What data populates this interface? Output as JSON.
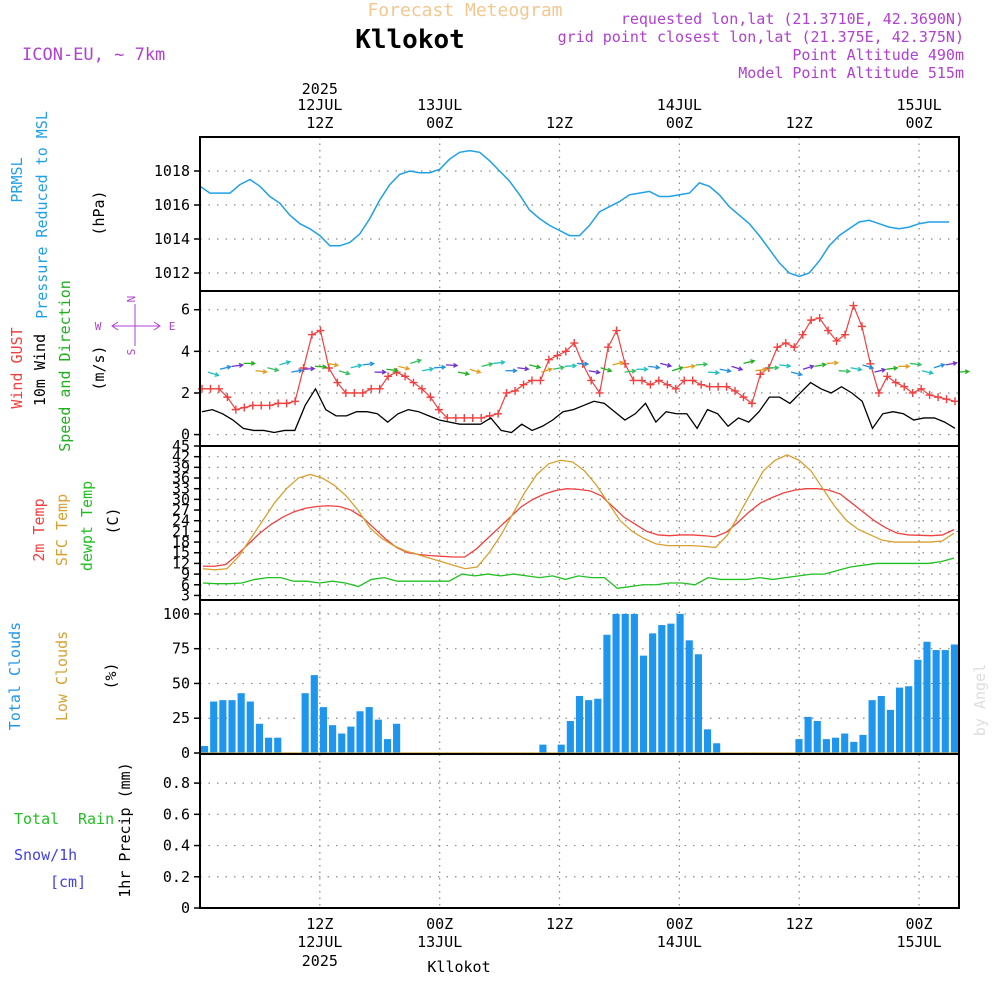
{
  "header": {
    "title": "Forecast Meteogram",
    "location": "Kllokot",
    "model": "ICON-EU, ~ 7km",
    "requested": "requested lon,lat (21.3710E, 42.3690N)",
    "grid_point": "grid point closest lon,lat (21.375E, 42.375N)",
    "point_altitude": "Point Altitude 490m",
    "model_altitude": "Model Point Altitude 515m",
    "footer_location": "Kllokot",
    "watermark": "by Angel"
  },
  "time_axis": {
    "top_labels": [
      {
        "year": "2025",
        "date": "12JUL",
        "hour": "12Z",
        "t": 12
      },
      {
        "year": "",
        "date": "13JUL",
        "hour": "00Z",
        "t": 24
      },
      {
        "year": "",
        "date": "",
        "hour": "12Z",
        "t": 36
      },
      {
        "year": "",
        "date": "14JUL",
        "hour": "00Z",
        "t": 48
      },
      {
        "year": "",
        "date": "",
        "hour": "12Z",
        "t": 60
      },
      {
        "year": "",
        "date": "15JUL",
        "hour": "00Z",
        "t": 72
      }
    ],
    "bottom_labels": [
      {
        "hour": "12Z",
        "date": "12JUL",
        "year": "2025",
        "t": 12
      },
      {
        "hour": "00Z",
        "date": "13JUL",
        "year": "",
        "t": 24
      },
      {
        "hour": "12Z",
        "date": "",
        "year": "",
        "t": 36
      },
      {
        "hour": "00Z",
        "date": "14JUL",
        "year": "",
        "t": 48
      },
      {
        "hour": "12Z",
        "date": "",
        "year": "",
        "t": 60
      },
      {
        "hour": "00Z",
        "date": "15JUL",
        "year": "",
        "t": 72
      }
    ]
  },
  "colors": {
    "pressure": "#1fa0e8",
    "gust": "#f04040",
    "wind": "#000000",
    "wind_arrows": "#20b020",
    "temp2m": "#f04040",
    "sfc": "#d8a030",
    "dewpt": "#20c020",
    "clouds": "#1f96ee",
    "low_clouds": "#d8a030",
    "rain": "#20c020",
    "snow": "#4040e8",
    "compass": "#b040d0",
    "title": "#f0c890",
    "info": "#b040d0"
  },
  "panels": {
    "pressure": {
      "labels": [
        "PRMSL",
        "Pressure Reduced to MSL"
      ],
      "unit": "(hPa)",
      "ticks": [
        "1012",
        "1014",
        "1016",
        "1018"
      ]
    },
    "wind": {
      "labels": [
        "Wind GUST",
        "10m Wind",
        "Speed and Direction"
      ],
      "unit": "(m/s)",
      "ticks": [
        "0",
        "2",
        "4",
        "6"
      ],
      "compass": {
        "n": "N",
        "s": "S",
        "w": "W",
        "e": "E"
      }
    },
    "temperature": {
      "labels": [
        "2m Temp",
        "SFC Temp",
        "dewpt Temp"
      ],
      "unit": "(C)",
      "ticks": [
        "3",
        "6",
        "9",
        "12",
        "15",
        "18",
        "21",
        "24",
        "27",
        "30",
        "33",
        "36",
        "39",
        "42",
        "45"
      ]
    },
    "clouds": {
      "labels": [
        "Total Clouds",
        "Low Clouds"
      ],
      "unit": "(%)",
      "ticks": [
        "0",
        "25",
        "50",
        "75",
        "100"
      ]
    },
    "precip": {
      "labels": [
        "Total",
        "Rain",
        "Snow/1h",
        "[cm]"
      ],
      "unit": "1hr Precip (mm)",
      "ticks": [
        "0",
        "0.2",
        "0.4",
        "0.6",
        "0.8"
      ]
    }
  },
  "chart_data": [
    {
      "type": "line",
      "panel": "pressure",
      "x": [
        0,
        1,
        2,
        3,
        4,
        5,
        6,
        7,
        8,
        9,
        10,
        11,
        12,
        13,
        14,
        15,
        16,
        17,
        18,
        19,
        20,
        21,
        22,
        23,
        24,
        25,
        26,
        27,
        28,
        29,
        30,
        31,
        32,
        33,
        34,
        35,
        36,
        37,
        38,
        39,
        40,
        41,
        42,
        43,
        44,
        45,
        46,
        47,
        48,
        49,
        50,
        51,
        52,
        53,
        54,
        55,
        56,
        57,
        58,
        59,
        60,
        61,
        62,
        63,
        64,
        65,
        66,
        67,
        68,
        69,
        70,
        71,
        72,
        73,
        74,
        75
      ],
      "values": [
        1017.1,
        1016.7,
        1016.7,
        1016.7,
        1017.2,
        1017.5,
        1017.1,
        1016.5,
        1016.1,
        1015.4,
        1014.9,
        1014.6,
        1014.2,
        1013.6,
        1013.6,
        1013.8,
        1014.3,
        1015.2,
        1016.3,
        1017.2,
        1017.8,
        1018.0,
        1017.9,
        1017.9,
        1018.1,
        1018.7,
        1019.1,
        1019.2,
        1019.1,
        1018.6,
        1018.0,
        1017.4,
        1016.6,
        1015.7,
        1015.2,
        1014.8,
        1014.5,
        1014.2,
        1014.2,
        1014.8,
        1015.6,
        1015.9,
        1016.2,
        1016.6,
        1016.7,
        1016.8,
        1016.5,
        1016.5,
        1016.6,
        1016.7,
        1017.3,
        1017.1,
        1016.6,
        1015.9,
        1015.4,
        1014.9,
        1014.2,
        1013.4,
        1012.6,
        1012.0,
        1011.8,
        1012.0,
        1012.7,
        1013.6,
        1014.2,
        1014.6,
        1015.0,
        1015.1,
        1014.9,
        1014.7,
        1014.6,
        1014.7,
        1014.9,
        1015.0,
        1015.0,
        1015.0
      ],
      "ylim": [
        1011,
        1020
      ]
    },
    {
      "type": "line",
      "panel": "wind",
      "series": [
        {
          "name": "Wind GUST",
          "values": [
            2.2,
            2.2,
            2.2,
            1.8,
            1.2,
            1.3,
            1.4,
            1.4,
            1.4,
            1.5,
            1.5,
            1.6,
            3.2,
            4.8,
            5.0,
            3.2,
            2.5,
            2.0,
            2.0,
            2.0,
            2.2,
            2.2,
            2.8,
            3.0,
            2.8,
            2.5,
            2.2,
            1.8,
            1.2,
            0.8,
            0.8,
            0.8,
            0.8,
            0.8,
            0.9,
            1.0,
            2.0,
            2.1,
            2.4,
            2.6,
            2.6,
            3.6,
            3.8,
            4.0,
            4.4,
            3.4,
            2.6,
            2.0,
            4.2,
            5.0,
            3.4,
            2.6,
            2.6,
            2.4,
            2.6,
            2.4,
            2.2,
            2.6,
            2.6,
            2.4,
            2.3,
            2.3,
            2.3,
            2.1,
            1.8,
            1.5,
            2.9,
            3.2,
            4.2,
            4.4,
            4.2,
            4.8,
            5.5,
            5.6,
            5.0,
            4.5,
            4.8,
            6.2,
            5.2,
            3.4,
            2.0,
            2.8,
            2.5,
            2.3,
            2.0,
            2.2,
            1.9,
            1.8,
            1.7,
            1.6
          ]
        },
        {
          "name": "10m Wind",
          "values": [
            1.1,
            1.2,
            1.0,
            0.7,
            0.3,
            0.2,
            0.2,
            0.1,
            0.2,
            0.2,
            1.4,
            2.2,
            1.2,
            0.9,
            0.9,
            1.1,
            1.1,
            1.0,
            0.6,
            1.0,
            1.2,
            1.1,
            0.9,
            0.7,
            0.6,
            0.5,
            0.5,
            0.5,
            0.8,
            0.2,
            0.1,
            0.5,
            0.2,
            0.4,
            0.7,
            1.1,
            1.2,
            1.4,
            1.6,
            1.5,
            1.1,
            0.7,
            1.0,
            1.5,
            0.6,
            1.1,
            1.0,
            1.0,
            0.3,
            1.2,
            1.0,
            0.4,
            0.8,
            0.6,
            1.1,
            1.8,
            1.8,
            1.5,
            2.0,
            2.5,
            2.2,
            2.0,
            2.3,
            2.0,
            1.6,
            0.3,
            1.0,
            1.1,
            1.0,
            0.7,
            0.8,
            0.8,
            0.6,
            0.3
          ]
        }
      ],
      "x_gust": "index maps linearly across 76 h",
      "ylim": [
        -0.5,
        6.9
      ]
    },
    {
      "type": "line",
      "panel": "temperature",
      "series": [
        {
          "name": "2m Temp",
          "values": [
            11.2,
            11.2,
            11.7,
            14.4,
            17.5,
            20.5,
            23.0,
            25.0,
            26.5,
            27.5,
            28.0,
            28.2,
            28.0,
            27.0,
            25.0,
            22.0,
            19.0,
            16.5,
            15.0,
            14.5,
            14.2,
            14.0,
            13.8,
            13.8,
            16.0,
            19.0,
            22.0,
            25.0,
            28.0,
            30.0,
            31.5,
            32.5,
            33.0,
            32.8,
            32.4,
            31.0,
            28.0,
            25.0,
            23.0,
            21.0,
            20.0,
            19.8,
            20.0,
            20.0,
            19.8,
            19.5,
            20.8,
            23.5,
            26.5,
            29.0,
            30.5,
            31.8,
            32.6,
            33.0,
            33.0,
            32.6,
            31.5,
            29.0,
            26.5,
            24.0,
            22.0,
            20.5,
            20.0,
            19.9,
            19.8,
            20.0,
            21.5
          ]
        },
        {
          "name": "SFC Temp",
          "values": [
            10.5,
            10.2,
            10.5,
            14.0,
            19.0,
            24.0,
            29.0,
            33.0,
            36.0,
            37.0,
            36.0,
            34.0,
            31.0,
            27.0,
            22.0,
            19.0,
            17.0,
            15.5,
            14.5,
            13.5,
            12.5,
            11.5,
            10.5,
            11.0,
            15.0,
            20.0,
            26.0,
            32.0,
            37.0,
            40.0,
            41.0,
            40.5,
            38.0,
            34.0,
            29.0,
            24.0,
            21.0,
            19.0,
            17.5,
            17.0,
            17.0,
            17.0,
            16.8,
            16.5,
            20.0,
            26.0,
            32.0,
            38.0,
            41.0,
            42.5,
            41.0,
            38.0,
            33.0,
            28.0,
            24.0,
            21.5,
            20.0,
            18.5,
            18.0,
            18.0,
            18.0,
            18.0,
            18.3,
            20.5
          ]
        },
        {
          "name": "dewpt Temp",
          "values": [
            6.5,
            6.3,
            6.3,
            6.5,
            7.5,
            8.0,
            8.0,
            7.0,
            7.0,
            6.5,
            7.0,
            6.5,
            5.5,
            7.5,
            8.0,
            7.0,
            7.0,
            7.0,
            7.0,
            7.0,
            9.0,
            8.5,
            9.0,
            8.5,
            9.0,
            8.5,
            8.0,
            8.5,
            7.5,
            8.5,
            8.0,
            8.0,
            5.0,
            5.5,
            6.0,
            6.0,
            6.5,
            6.5,
            6.0,
            8.0,
            7.5,
            7.5,
            7.5,
            8.0,
            7.5,
            8.0,
            8.5,
            9.0,
            9.0,
            10.0,
            11.0,
            11.5,
            12.0,
            12.0,
            12.0,
            12.0,
            12.0,
            12.5,
            13.5
          ]
        }
      ],
      "ylim": [
        2,
        45
      ]
    },
    {
      "type": "bar",
      "panel": "clouds",
      "series": [
        {
          "name": "Total Clouds",
          "values": [
            5,
            37,
            38,
            38,
            43,
            37,
            21,
            11,
            11,
            0,
            0,
            43,
            56,
            33,
            20,
            14,
            19,
            30,
            33,
            24,
            10,
            21,
            0,
            0,
            0,
            0,
            0,
            0,
            0,
            0,
            0,
            0,
            0,
            0,
            0,
            0,
            0,
            6,
            0,
            6,
            23,
            41,
            38,
            39,
            85,
            100,
            100,
            100,
            70,
            86,
            92,
            93,
            100,
            81,
            71,
            17,
            7,
            0,
            0,
            0,
            0,
            0,
            0,
            0,
            0,
            10,
            26,
            23,
            10,
            11,
            14,
            8,
            13,
            38,
            41,
            31,
            47,
            48,
            67,
            80,
            74,
            74,
            78
          ]
        }
      ],
      "ylim": [
        0,
        110
      ]
    },
    {
      "type": "line",
      "panel": "precip",
      "series": [
        {
          "name": "Total Rain",
          "values": [
            0
          ]
        }
      ],
      "ylim": [
        0,
        0.98
      ]
    }
  ]
}
